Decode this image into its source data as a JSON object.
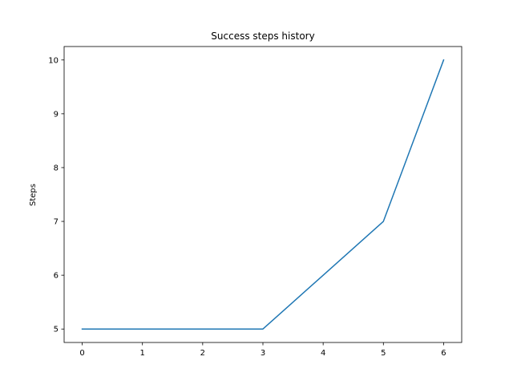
{
  "chart_data": {
    "type": "line",
    "title": "Success steps history",
    "xlabel": "",
    "ylabel": "Steps",
    "x": [
      0,
      1,
      2,
      3,
      4,
      5,
      6
    ],
    "series": [
      {
        "values": [
          5,
          5,
          5,
          5,
          6,
          7,
          10
        ],
        "color": "#1f77b4"
      }
    ],
    "xlim": [
      -0.3,
      6.3
    ],
    "ylim": [
      4.75,
      10.25
    ],
    "xticks": [
      0,
      1,
      2,
      3,
      4,
      5,
      6
    ],
    "yticks": [
      5,
      6,
      7,
      8,
      9,
      10
    ],
    "grid": false,
    "legend": "none"
  }
}
